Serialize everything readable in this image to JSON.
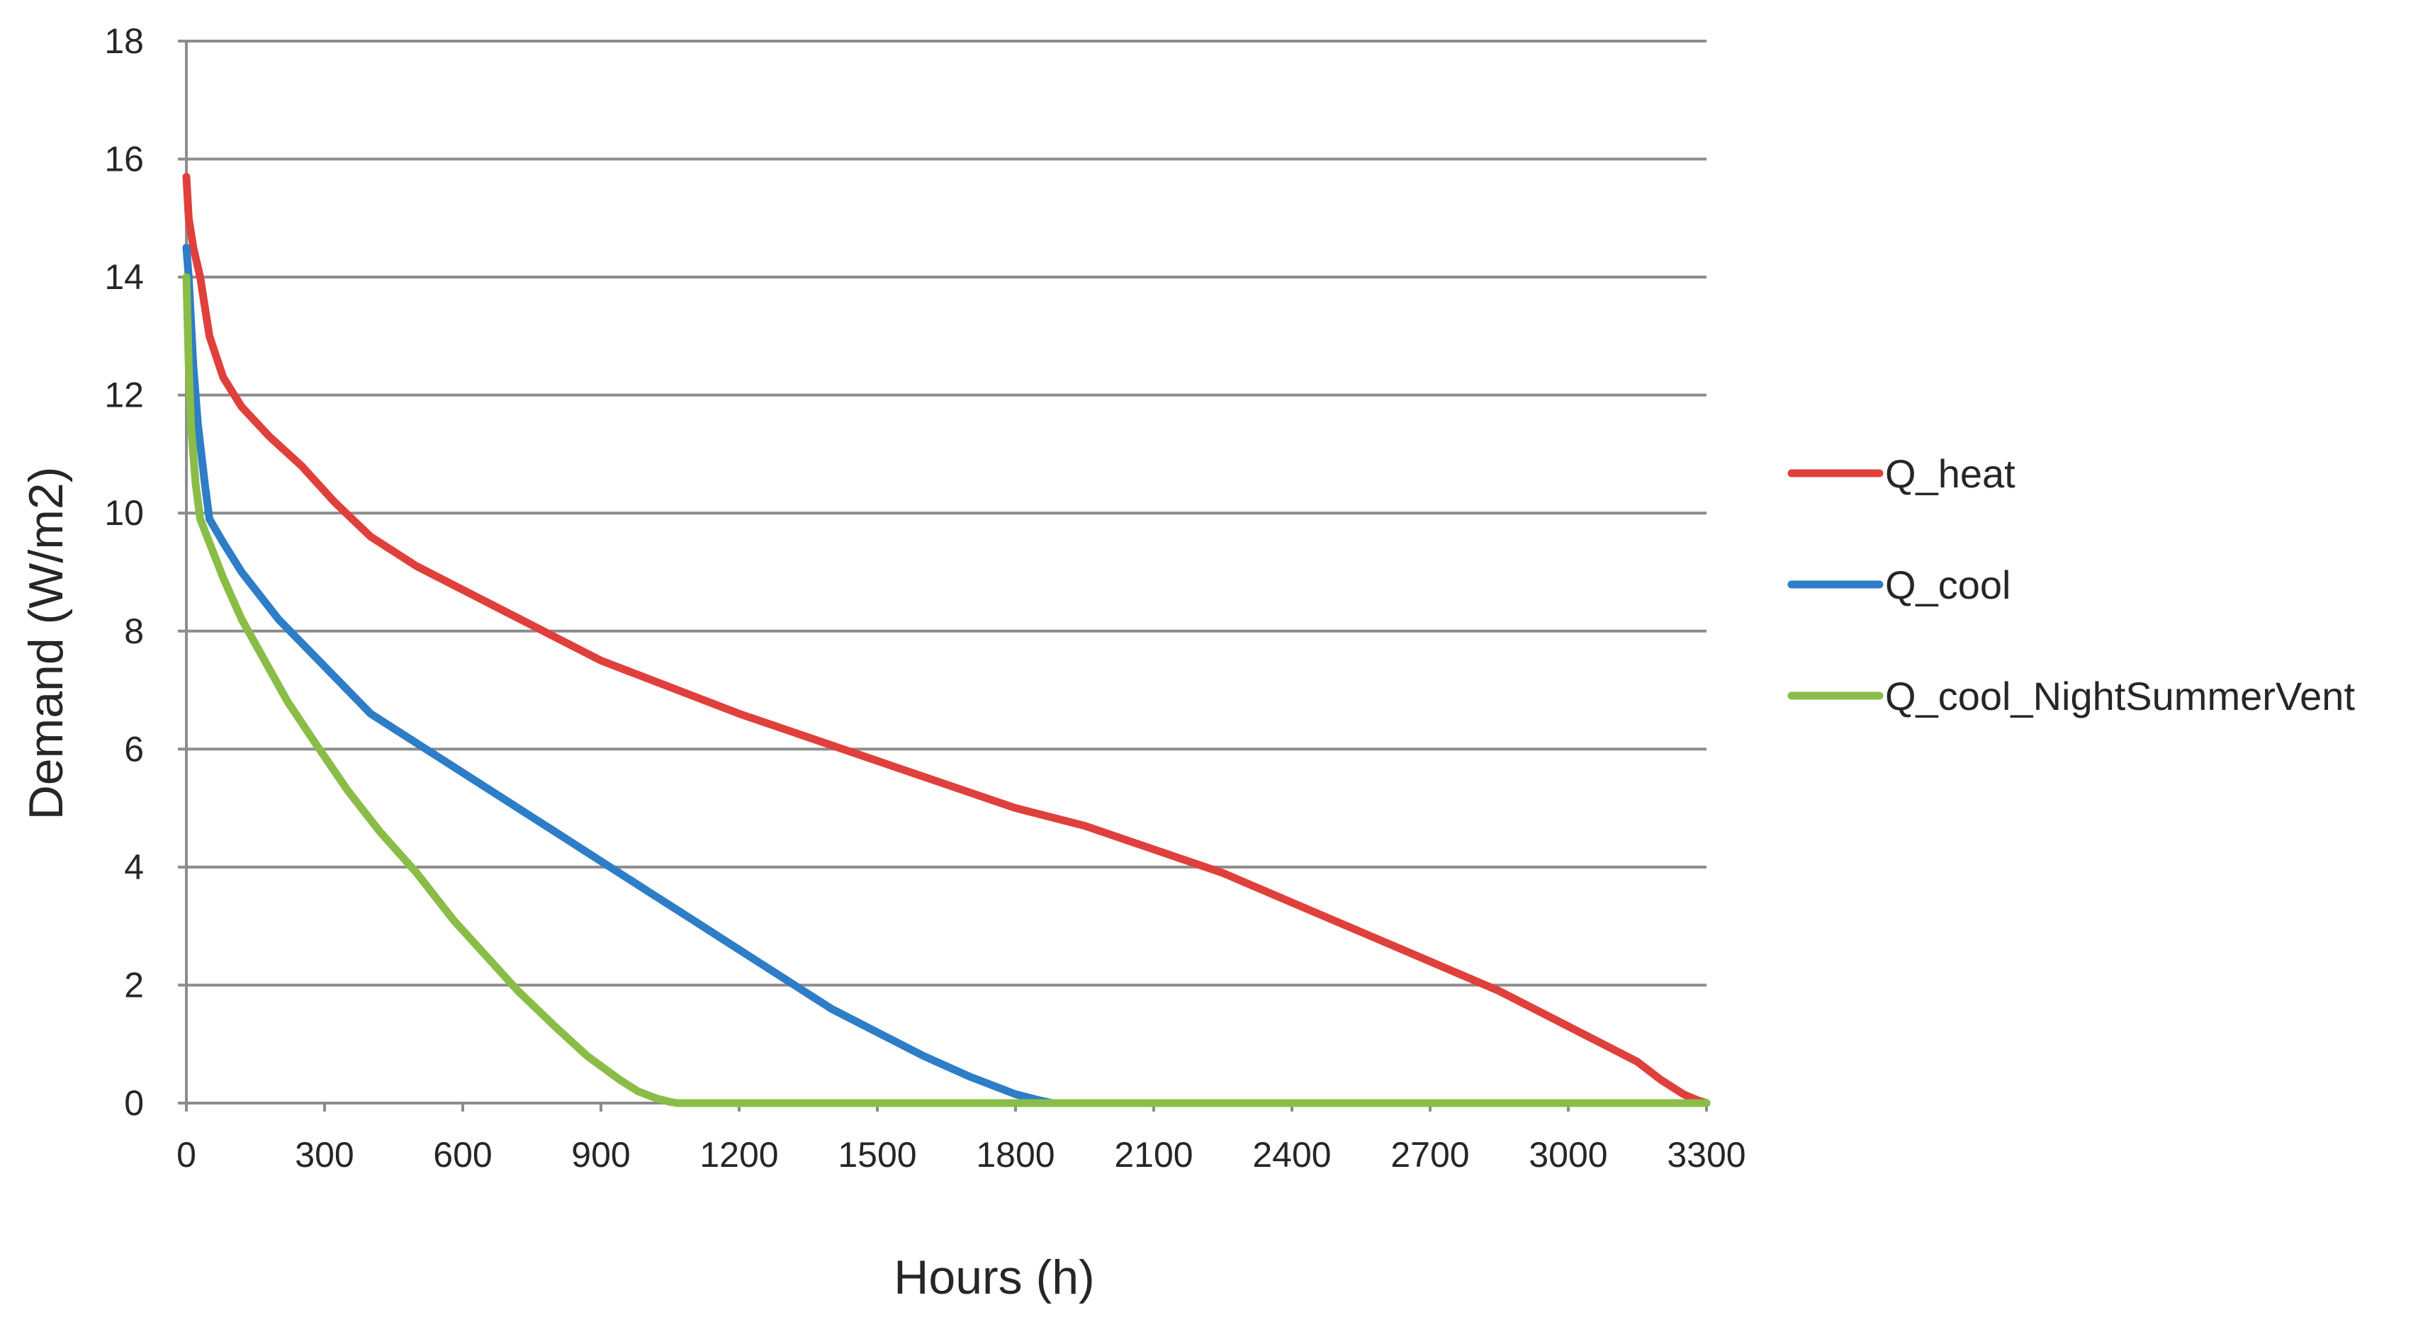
{
  "chart_data": {
    "type": "line",
    "title": "",
    "xlabel": "Hours (h)",
    "ylabel": "Demand (W/m2)",
    "xlim": [
      0,
      3300
    ],
    "ylim": [
      0,
      18
    ],
    "xticks": [
      0,
      300,
      600,
      900,
      1200,
      1500,
      1800,
      2100,
      2400,
      2700,
      3000,
      3300
    ],
    "yticks": [
      0,
      2,
      4,
      6,
      8,
      10,
      12,
      14,
      16,
      18
    ],
    "grid": {
      "horizontal": true,
      "vertical": false
    },
    "legend_position": "right",
    "series": [
      {
        "name": "Q_heat",
        "color": "#e0403c",
        "x": [
          0,
          5,
          15,
          30,
          50,
          80,
          120,
          180,
          250,
          320,
          400,
          500,
          600,
          700,
          800,
          900,
          1000,
          1100,
          1200,
          1350,
          1500,
          1650,
          1800,
          1950,
          2100,
          2250,
          2400,
          2550,
          2700,
          2850,
          3000,
          3100,
          3150,
          3200,
          3250,
          3280,
          3300
        ],
        "y": [
          15.7,
          15.0,
          14.5,
          14.0,
          13.0,
          12.3,
          11.8,
          11.3,
          10.8,
          10.2,
          9.6,
          9.1,
          8.7,
          8.3,
          7.9,
          7.5,
          7.2,
          6.9,
          6.6,
          6.2,
          5.8,
          5.4,
          5.0,
          4.7,
          4.3,
          3.9,
          3.4,
          2.9,
          2.4,
          1.9,
          1.3,
          0.9,
          0.7,
          0.4,
          0.15,
          0.05,
          0.0
        ]
      },
      {
        "name": "Q_cool",
        "color": "#2e7dc7",
        "x": [
          0,
          5,
          15,
          25,
          40,
          50,
          80,
          120,
          200,
          300,
          400,
          500,
          600,
          700,
          800,
          900,
          1000,
          1100,
          1200,
          1300,
          1400,
          1500,
          1600,
          1700,
          1800,
          1850,
          1880,
          1900,
          3300
        ],
        "y": [
          14.5,
          14.0,
          12.5,
          11.5,
          10.5,
          9.9,
          9.5,
          9.0,
          8.2,
          7.4,
          6.6,
          6.1,
          5.6,
          5.1,
          4.6,
          4.1,
          3.6,
          3.1,
          2.6,
          2.1,
          1.6,
          1.2,
          0.8,
          0.45,
          0.15,
          0.05,
          0.0,
          0.0,
          0.0
        ]
      },
      {
        "name": "Q_cool_NightSummerVent",
        "color": "#8abd47",
        "x": [
          0,
          5,
          10,
          20,
          30,
          50,
          80,
          120,
          170,
          220,
          280,
          350,
          420,
          500,
          580,
          650,
          720,
          800,
          870,
          940,
          980,
          1020,
          1050,
          1065,
          3300
        ],
        "y": [
          14.0,
          12.5,
          11.5,
          10.5,
          9.9,
          9.5,
          8.9,
          8.2,
          7.5,
          6.8,
          6.1,
          5.3,
          4.6,
          3.9,
          3.1,
          2.5,
          1.9,
          1.3,
          0.8,
          0.4,
          0.2,
          0.08,
          0.02,
          0.0,
          0.0
        ]
      }
    ]
  }
}
